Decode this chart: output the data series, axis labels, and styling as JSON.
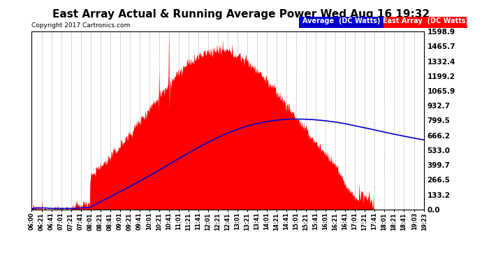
{
  "title": "East Array Actual & Running Average Power Wed Aug 16 19:32",
  "copyright": "Copyright 2017 Cartronics.com",
  "legend_avg": "Average  (DC Watts)",
  "legend_east": "East Array  (DC Watts)",
  "yticks": [
    0.0,
    133.2,
    266.5,
    399.7,
    533.0,
    666.2,
    799.5,
    932.7,
    1065.9,
    1199.2,
    1332.4,
    1465.7,
    1598.9
  ],
  "ymax": 1598.9,
  "background_color": "#ffffff",
  "plot_bg_color": "#ffffff",
  "grid_color": "#b0b0b0",
  "fill_color": "#ff0000",
  "avg_line_color": "#0000cc",
  "title_fontsize": 11,
  "xtick_labels": [
    "06:00",
    "06:21",
    "06:41",
    "07:01",
    "07:21",
    "07:41",
    "08:01",
    "08:21",
    "08:41",
    "09:01",
    "09:21",
    "09:41",
    "10:01",
    "10:21",
    "10:41",
    "11:01",
    "11:21",
    "11:41",
    "12:01",
    "12:21",
    "12:41",
    "13:01",
    "13:21",
    "13:41",
    "14:01",
    "14:21",
    "14:41",
    "15:01",
    "15:21",
    "15:41",
    "16:01",
    "16:21",
    "16:41",
    "17:01",
    "17:21",
    "17:41",
    "18:01",
    "18:21",
    "18:41",
    "19:03",
    "19:23"
  ]
}
